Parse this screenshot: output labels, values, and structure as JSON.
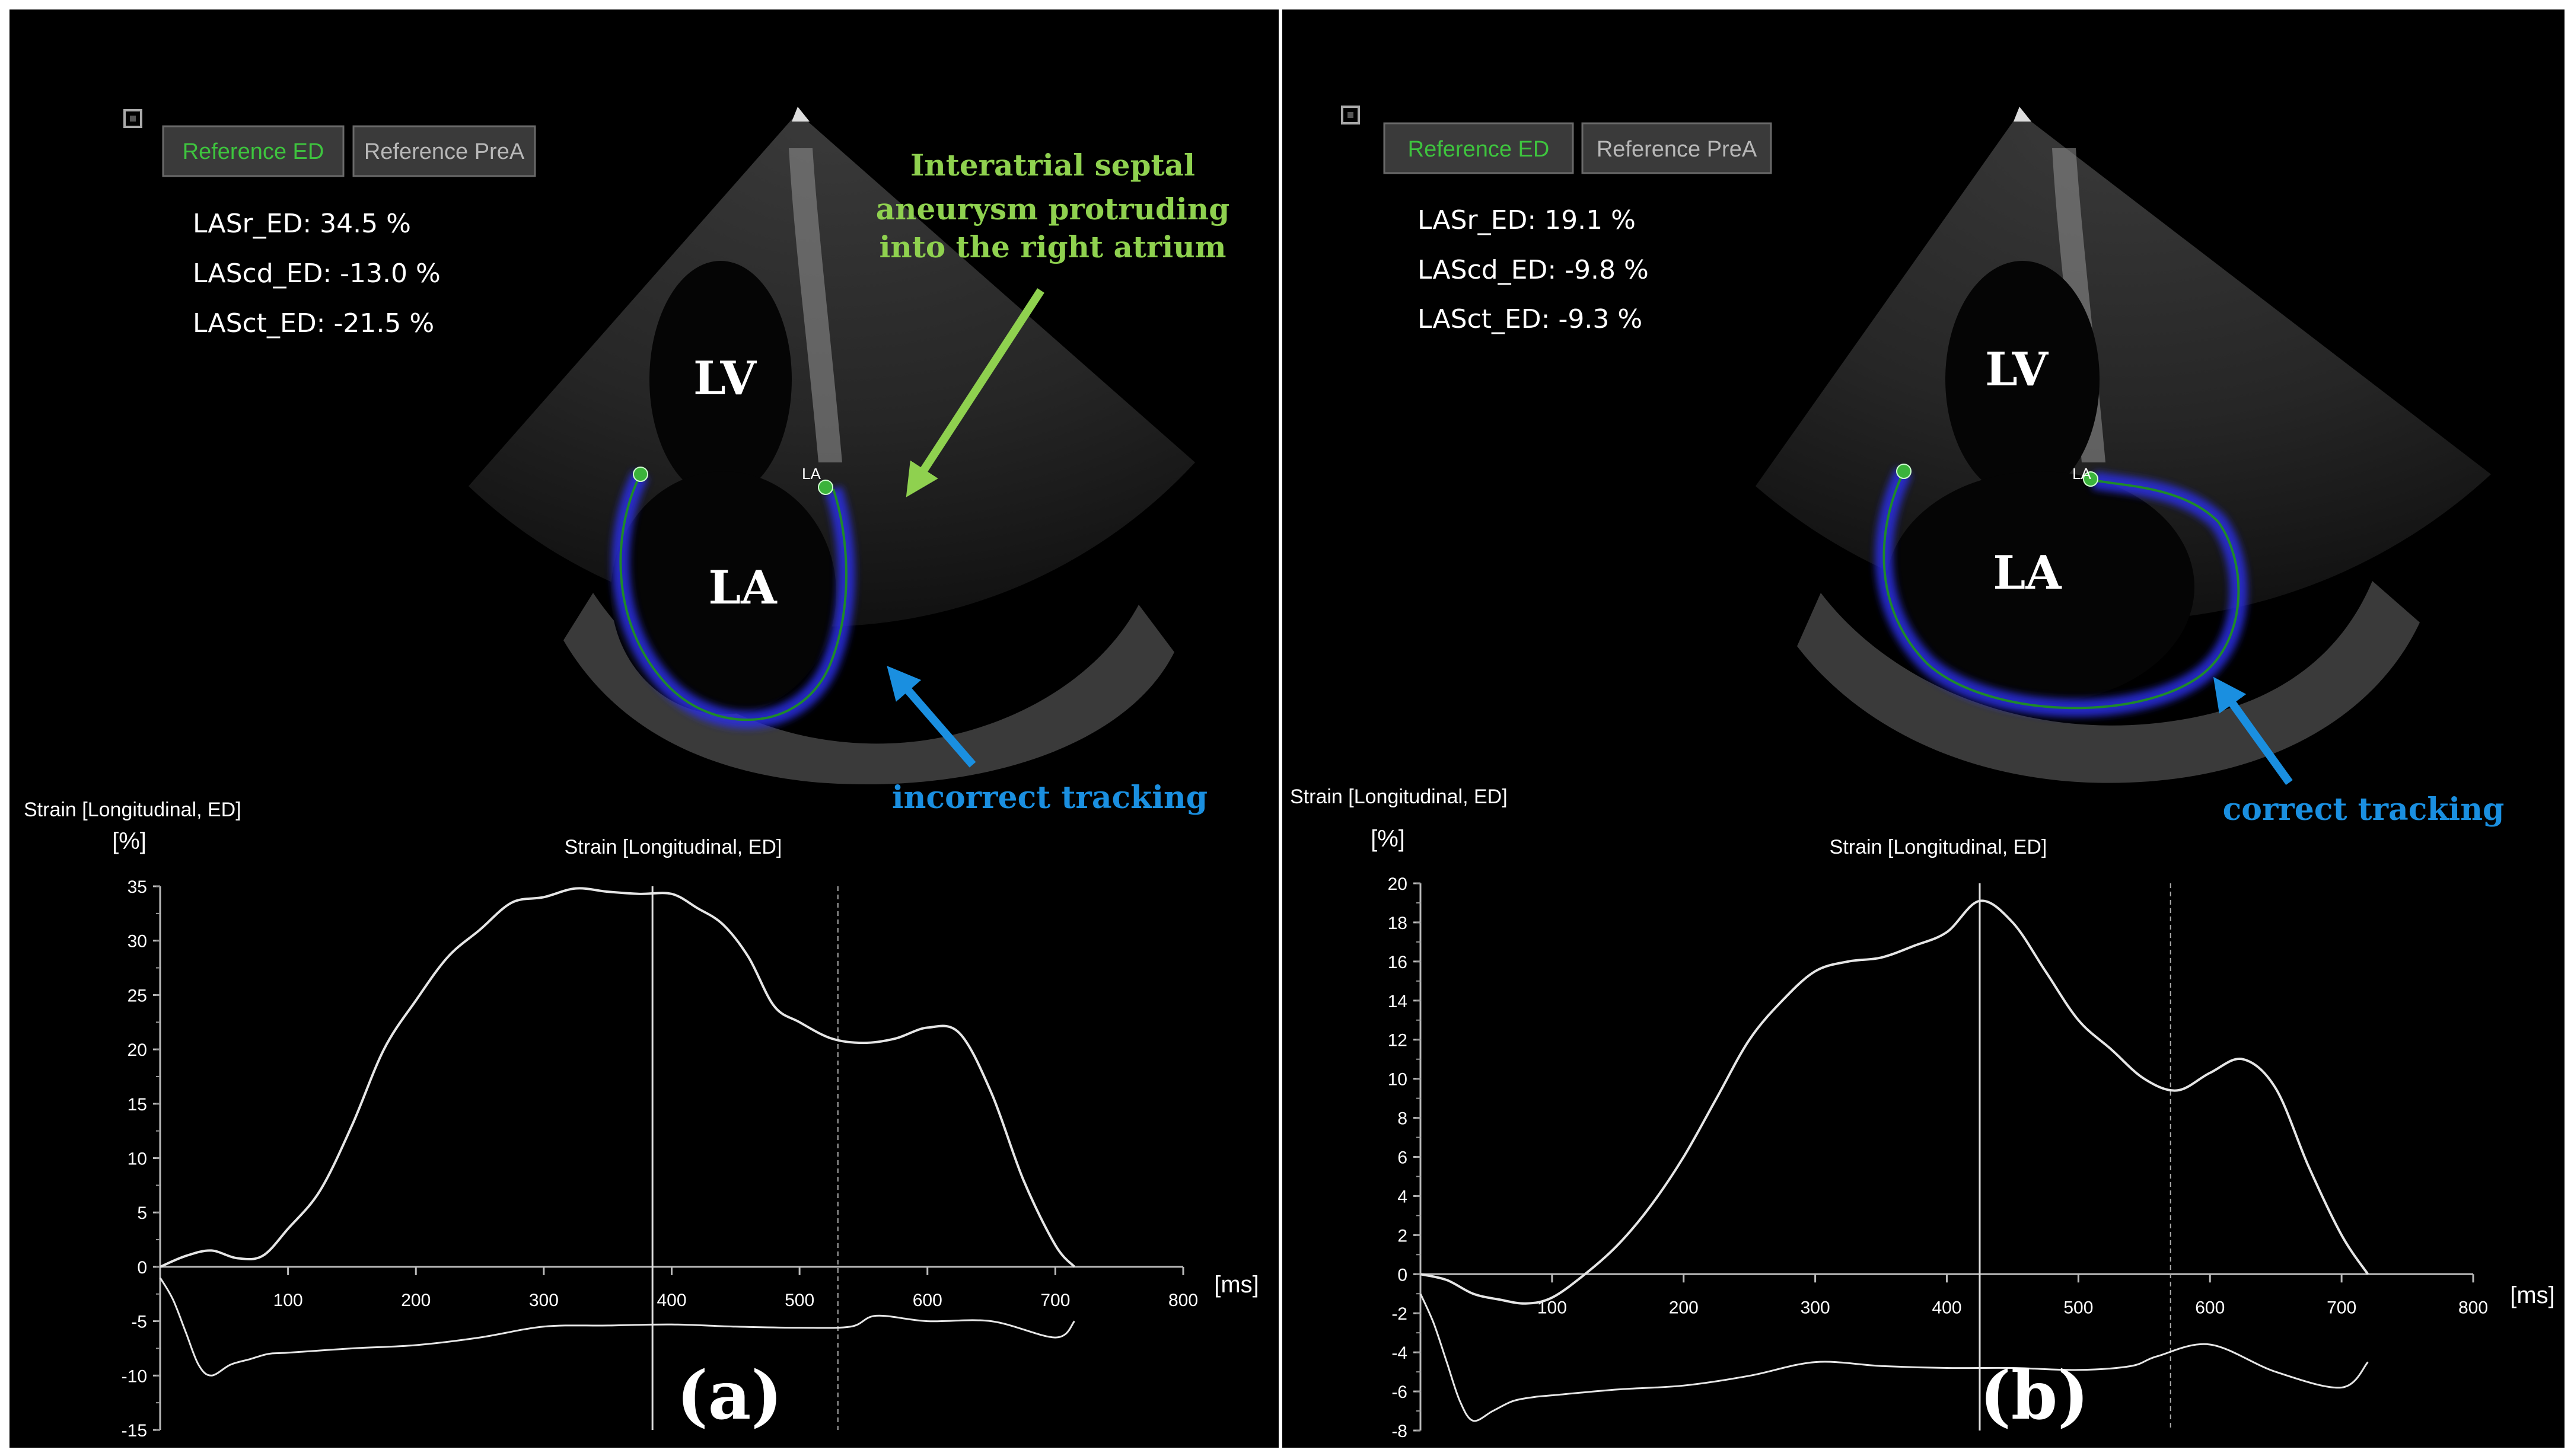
{
  "colors": {
    "background": "#000000",
    "border": "#ffffff",
    "trace": "#e6e6e6",
    "tracking_line": "#1e8a2a",
    "tracking_band": "#2a2fe0",
    "annotation_green": "#8fd14f",
    "annotation_blue": "#1a8fe0",
    "button_active_text": "#3ec43e",
    "button_text": "#b8b8b8",
    "button_bg": "#3a3a3a"
  },
  "panels": [
    {
      "id": "a",
      "checkbox": "",
      "buttons": [
        {
          "label": "Reference ED",
          "active": true
        },
        {
          "label": "Reference PreA",
          "active": false
        }
      ],
      "measurements": [
        "LASr_ED: 34.5 %",
        "LAScd_ED: -13.0 %",
        "LASct_ED: -21.5 %"
      ],
      "chamber_labels": {
        "lv": "LV",
        "la": "LA",
        "marker": "LA"
      },
      "annotations": [
        {
          "kind": "septal",
          "lines": [
            "Interatrial septal",
            "aneurysm protruding",
            "into the right atrium"
          ],
          "color": "green"
        },
        {
          "kind": "tracking",
          "lines": [
            "incorrect tracking"
          ],
          "color": "blue"
        }
      ],
      "panel_letter": "(a)",
      "chart_data": {
        "type": "line",
        "outer_label": "Strain [Longitudinal, ED]",
        "title": "Strain [Longitudinal, ED]",
        "ylabel": "[%]",
        "xlabel": "[ms]",
        "xlim": [
          0,
          800
        ],
        "ylim": [
          -15,
          35
        ],
        "xticks": [
          100,
          200,
          300,
          400,
          500,
          600,
          700,
          800
        ],
        "yticks": [
          35,
          30,
          25,
          20,
          15,
          10,
          5,
          0,
          -5,
          -10,
          -15
        ],
        "markers": [
          {
            "x": 385,
            "style": "solid"
          },
          {
            "x": 530,
            "style": "dashed"
          }
        ],
        "series": [
          {
            "name": "strain",
            "x": [
              0,
              20,
              40,
              60,
              80,
              100,
              125,
              150,
              175,
              200,
              225,
              250,
              275,
              300,
              325,
              350,
              375,
              400,
              420,
              440,
              460,
              480,
              500,
              525,
              550,
              575,
              600,
              625,
              650,
              675,
              700,
              715
            ],
            "y": [
              0,
              1,
              1.5,
              0.8,
              1,
              3.5,
              7,
              13,
              20,
              24.5,
              28.5,
              31,
              33.5,
              34,
              34.8,
              34.5,
              34.3,
              34.3,
              33,
              31.5,
              28.5,
              24,
              22.5,
              21,
              20.6,
              21,
              22,
              21.5,
              16,
              8,
              2,
              0
            ]
          },
          {
            "name": "strain-rate",
            "x": [
              0,
              10,
              20,
              30,
              40,
              55,
              70,
              85,
              100,
              150,
              200,
              250,
              300,
              350,
              400,
              450,
              500,
              540,
              560,
              600,
              650,
              700,
              715
            ],
            "y": [
              -1,
              -3,
              -6,
              -9,
              -10,
              -9,
              -8.5,
              -8,
              -7.9,
              -7.5,
              -7.2,
              -6.5,
              -5.5,
              -5.4,
              -5.3,
              -5.5,
              -5.6,
              -5.5,
              -4.5,
              -5,
              -5,
              -6.5,
              -5
            ]
          }
        ]
      }
    },
    {
      "id": "b",
      "checkbox": "",
      "buttons": [
        {
          "label": "Reference ED",
          "active": true
        },
        {
          "label": "Reference PreA",
          "active": false
        }
      ],
      "measurements": [
        "LASr_ED: 19.1 %",
        "LAScd_ED: -9.8 %",
        "LASct_ED: -9.3 %"
      ],
      "chamber_labels": {
        "lv": "LV",
        "la": "LA",
        "marker": "LA"
      },
      "annotations": [
        {
          "kind": "tracking",
          "lines": [
            "correct tracking"
          ],
          "color": "blue"
        }
      ],
      "panel_letter": "(b)",
      "chart_data": {
        "type": "line",
        "outer_label": "Strain [Longitudinal, ED]",
        "title": "Strain [Longitudinal, ED]",
        "ylabel": "[%]",
        "xlabel": "[ms]",
        "xlim": [
          0,
          800
        ],
        "ylim": [
          -8,
          20
        ],
        "xticks": [
          100,
          200,
          300,
          400,
          500,
          600,
          700,
          800
        ],
        "yticks": [
          20,
          18,
          16,
          14,
          12,
          10,
          8,
          6,
          4,
          2,
          0,
          -2,
          -4,
          -6,
          -8
        ],
        "markers": [
          {
            "x": 425,
            "style": "solid"
          },
          {
            "x": 570,
            "style": "dashed"
          }
        ],
        "series": [
          {
            "name": "strain",
            "x": [
              0,
              20,
              40,
              60,
              80,
              100,
              125,
              150,
              175,
              200,
              225,
              250,
              275,
              300,
              325,
              350,
              375,
              400,
              425,
              450,
              475,
              500,
              525,
              550,
              575,
              600,
              625,
              650,
              675,
              700,
              720
            ],
            "y": [
              0,
              -0.3,
              -1,
              -1.3,
              -1.5,
              -1.2,
              0,
              1.5,
              3.5,
              6,
              9,
              12,
              14,
              15.5,
              16,
              16.2,
              16.8,
              17.5,
              19.1,
              18,
              15.5,
              13,
              11.5,
              10,
              9.4,
              10.3,
              11,
              9.5,
              5.5,
              2,
              0
            ]
          },
          {
            "name": "strain-rate",
            "x": [
              0,
              10,
              20,
              30,
              40,
              55,
              70,
              85,
              100,
              150,
              200,
              250,
              300,
              350,
              400,
              450,
              500,
              540,
              560,
              600,
              650,
              700,
              720
            ],
            "y": [
              -1,
              -2.5,
              -4.5,
              -6.5,
              -7.5,
              -7,
              -6.5,
              -6.3,
              -6.2,
              -5.9,
              -5.7,
              -5.2,
              -4.5,
              -4.7,
              -4.8,
              -4.8,
              -4.9,
              -4.7,
              -4.2,
              -3.6,
              -5,
              -5.8,
              -4.5
            ]
          }
        ]
      }
    }
  ]
}
